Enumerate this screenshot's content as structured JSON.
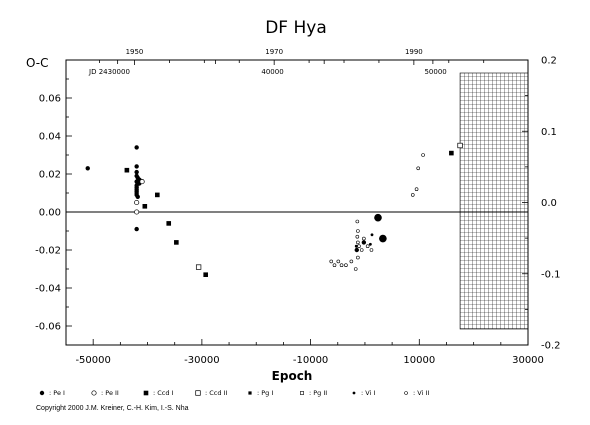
{
  "chart_data": {
    "type": "scatter",
    "title": "DF  Hya",
    "ylabel": "O-C",
    "xlabel": "Epoch",
    "xlim": [
      -55000,
      30000
    ],
    "ylim": [
      -0.07,
      0.08
    ],
    "right_ylim": [
      -0.2,
      0.2
    ],
    "x_ticks": [
      -50000,
      -30000,
      -10000,
      10000,
      30000
    ],
    "x_tick_labels": [
      "-50000",
      "-30000",
      "-10000",
      "10000",
      "30000"
    ],
    "y_ticks": [
      -0.06,
      -0.04,
      -0.02,
      0.0,
      0.02,
      0.04,
      0.06
    ],
    "y_tick_labels": [
      "-0.06",
      "-0.04",
      "-0.02",
      "0.00",
      "0.02",
      "0.04",
      "0.06"
    ],
    "right_ticks": [
      -0.2,
      -0.1,
      0.0,
      0.1,
      0.2
    ],
    "right_tick_labels": [
      "-0.2",
      "-0.1",
      "0.0",
      "0.1",
      "0.2"
    ],
    "year_ticks": [
      1950,
      1970,
      1990
    ],
    "jd_labels": [
      {
        "text": "JD 2430000",
        "epoch": -47000
      },
      {
        "text": "40000",
        "epoch": -17000
      },
      {
        "text": "50000",
        "epoch": 13000
      }
    ],
    "hatched_region": [
      17500,
      30000
    ],
    "grid": false,
    "legend_position": "bottom",
    "series": [
      {
        "name": "Pe I",
        "marker": "filled-circle",
        "points": [
          [
            -51000,
            0.023
          ],
          [
            -42000,
            0.034
          ],
          [
            -42000,
            0.024
          ],
          [
            -42000,
            0.021
          ],
          [
            -42000,
            0.019
          ],
          [
            -41800,
            0.018
          ],
          [
            -42000,
            0.016
          ],
          [
            -42000,
            0.014
          ],
          [
            -42000,
            0.013
          ],
          [
            -42000,
            0.012
          ],
          [
            -42000,
            0.011
          ],
          [
            -42000,
            0.01
          ],
          [
            -42000,
            0.009
          ],
          [
            -41500,
            0.017
          ],
          [
            -41500,
            0.015
          ],
          [
            -41800,
            0.008
          ],
          [
            -42000,
            -0.009
          ],
          [
            -1500,
            -0.02
          ],
          [
            2400,
            -0.003
          ],
          [
            -200,
            -0.016
          ],
          [
            3300,
            -0.014
          ]
        ]
      },
      {
        "name": "Pe II",
        "marker": "open-circle",
        "points": [
          [
            -42000,
            0.005
          ],
          [
            -41000,
            0.016
          ],
          [
            -42000,
            0.0
          ]
        ]
      },
      {
        "name": "Ccd I",
        "marker": "filled-square",
        "points": [
          [
            -43800,
            0.022
          ],
          [
            -40500,
            0.003
          ],
          [
            -38200,
            0.009
          ],
          [
            -36100,
            -0.006
          ],
          [
            -34700,
            -0.016
          ],
          [
            -29300,
            -0.033
          ],
          [
            15900,
            0.031
          ]
        ]
      },
      {
        "name": "Ccd II",
        "marker": "open-square",
        "points": [
          [
            -30600,
            -0.029
          ],
          [
            17500,
            0.035
          ]
        ]
      },
      {
        "name": "Pg I",
        "marker": "filled-square-small",
        "points": []
      },
      {
        "name": "Pg II",
        "marker": "open-square-small",
        "points": []
      },
      {
        "name": "Vi I",
        "marker": "filled-dot",
        "points": [
          [
            -1600,
            -0.018
          ],
          [
            1000,
            -0.017
          ],
          [
            1300,
            -0.012
          ]
        ]
      },
      {
        "name": "Vi II",
        "marker": "open-dot",
        "points": [
          [
            -6200,
            -0.026
          ],
          [
            -5600,
            -0.028
          ],
          [
            -4900,
            -0.026
          ],
          [
            -4300,
            -0.028
          ],
          [
            -3500,
            -0.028
          ],
          [
            -2500,
            -0.026
          ],
          [
            -1700,
            -0.03
          ],
          [
            -1300,
            -0.024
          ],
          [
            -1100,
            -0.018
          ],
          [
            -1300,
            -0.016
          ],
          [
            -1400,
            -0.013
          ],
          [
            -1300,
            -0.01
          ],
          [
            -1400,
            -0.005
          ],
          [
            -600,
            -0.02
          ],
          [
            -200,
            -0.014
          ],
          [
            500,
            -0.018
          ],
          [
            1200,
            -0.02
          ],
          [
            8800,
            0.009
          ],
          [
            9500,
            0.012
          ],
          [
            9800,
            0.023
          ],
          [
            10700,
            0.03
          ]
        ]
      }
    ]
  },
  "legend": [
    {
      "label": ": Pe I",
      "marker": "filled-circle"
    },
    {
      "label": ": Pe II",
      "marker": "open-circle"
    },
    {
      "label": ": Ccd I",
      "marker": "filled-square"
    },
    {
      "label": ": Ccd II",
      "marker": "open-square"
    },
    {
      "label": ": Pg I",
      "marker": "filled-square-small"
    },
    {
      "label": ": Pg II",
      "marker": "open-square-small"
    },
    {
      "label": ": Vi I",
      "marker": "filled-dot"
    },
    {
      "label": ": Vi II",
      "marker": "open-dot"
    }
  ],
  "copyright": "Copyright 2000 J.M. Kreiner, C.-H. Kim, I.-S. Nha"
}
